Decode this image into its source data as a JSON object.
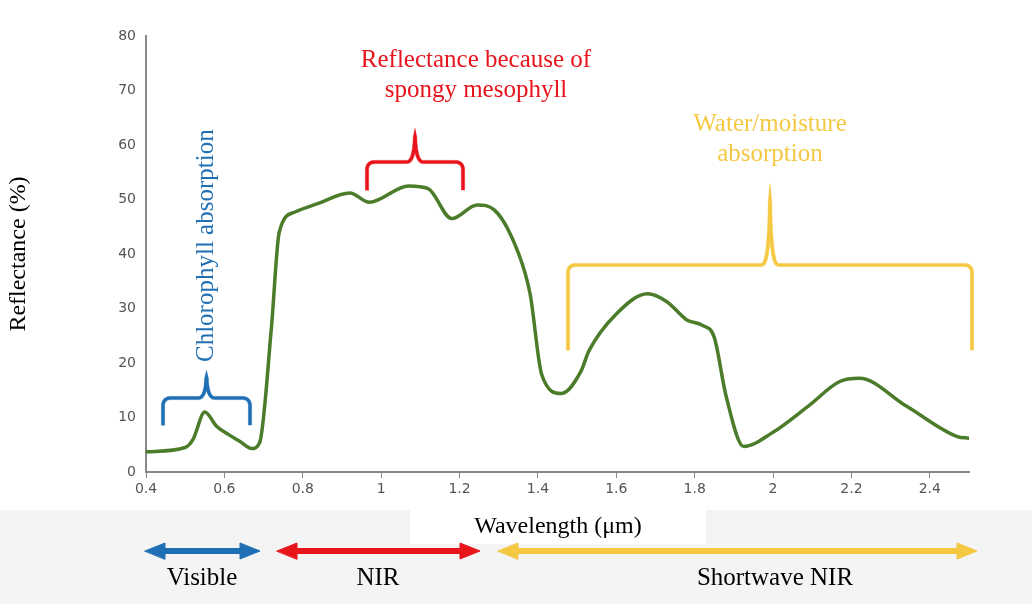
{
  "chart_data": {
    "type": "line",
    "xlabel": "Wavelength (μm)",
    "ylabel": "Reflectance (%)",
    "x": [
      0.4,
      0.5,
      0.52,
      0.55,
      0.58,
      0.61,
      0.64,
      0.67,
      0.69,
      0.72,
      0.74,
      0.78,
      0.84,
      0.92,
      0.97,
      1.07,
      1.12,
      1.18,
      1.245,
      1.29,
      1.35,
      1.38,
      1.41,
      1.46,
      1.51,
      1.53,
      1.6,
      1.68,
      1.73,
      1.78,
      1.82,
      1.85,
      1.88,
      1.925,
      2.0,
      2.09,
      2.17,
      2.22,
      2.34,
      2.47,
      2.5
    ],
    "series": [
      {
        "color": "#4a7c2a",
        "values": [
          3.7,
          4.5,
          6,
          11,
          8.4,
          6.9,
          5.6,
          4.3,
          5.4,
          26.5,
          44,
          47.7,
          49.3,
          51.2,
          49.5,
          52.5,
          52,
          46.5,
          49,
          48,
          40.2,
          32.7,
          17.8,
          14.4,
          18.5,
          22.2,
          29,
          32.7,
          31.2,
          27.9,
          26.9,
          24.7,
          14,
          4.7,
          7.3,
          12.1,
          16.6,
          17.2,
          12.1,
          6.5,
          6.2
        ]
      }
    ],
    "xlim": [
      0.4,
      2.5
    ],
    "xticks": [
      0.4,
      0.6,
      0.8,
      1,
      1.2,
      1.4,
      1.6,
      1.8,
      2,
      2.2,
      2.4
    ],
    "ylim": [
      0,
      80
    ],
    "yticks": [
      0,
      10,
      20,
      30,
      40,
      50,
      60,
      70,
      80
    ],
    "grid": false,
    "legend": false,
    "marker": "none",
    "line_style": "solid",
    "annotations": [
      "Chlorophyll absorption",
      "Reflectance because of spongy mesophyll",
      "Water/moisture absorption",
      "Visible",
      "NIR",
      "Shortwave NIR"
    ]
  }
}
